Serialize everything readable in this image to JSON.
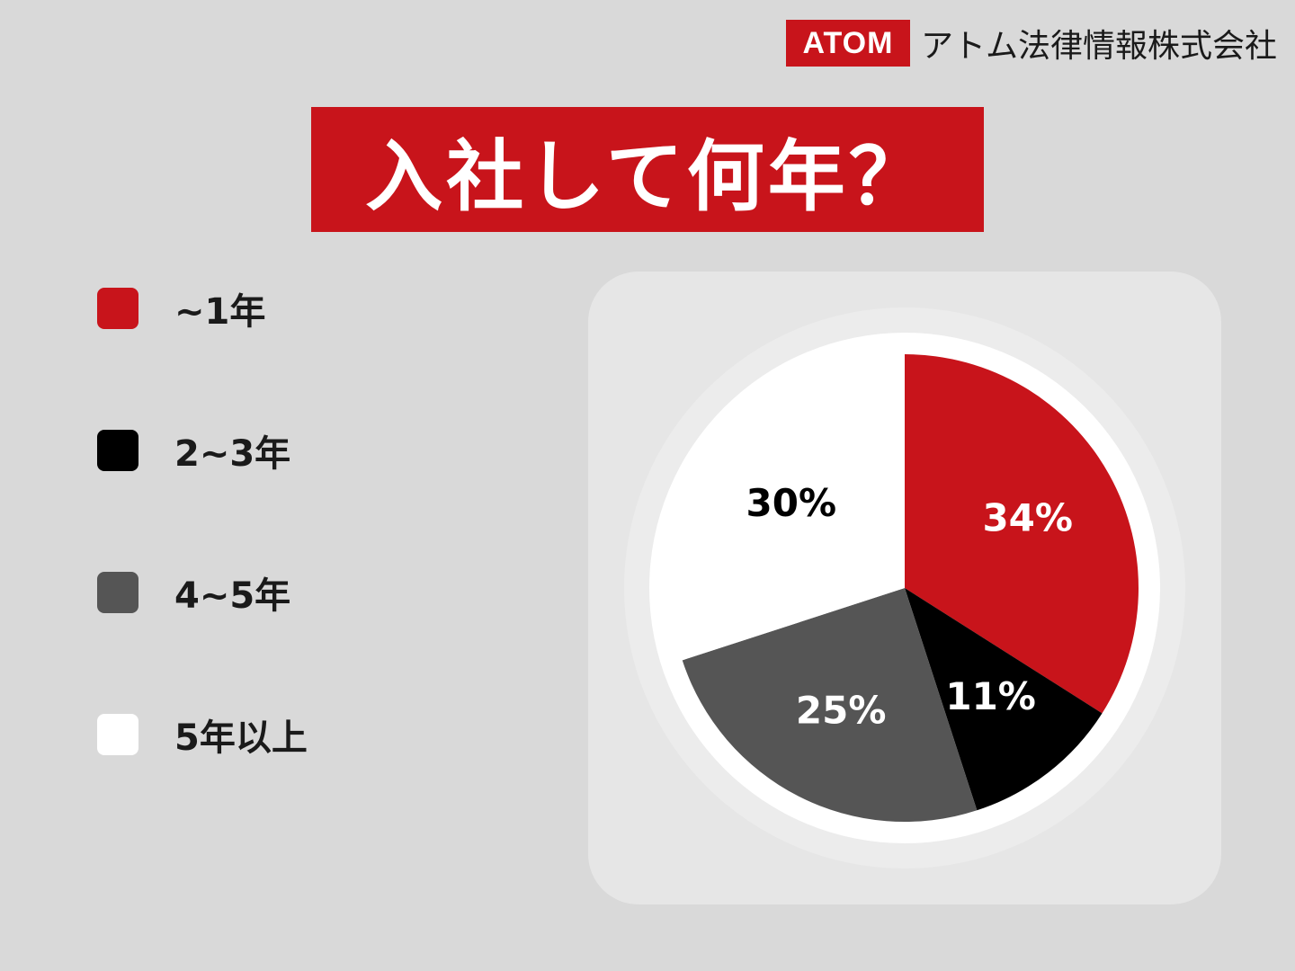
{
  "brand": {
    "logo": "ATOM",
    "company": "アトム法律情報株式会社"
  },
  "title": "入社して何年？",
  "colors": {
    "accent": "#c8141b",
    "black": "#000000",
    "gray": "#555555",
    "white": "#ffffff"
  },
  "chart_data": {
    "type": "pie",
    "title": "入社して何年？",
    "categories": [
      "~1年",
      "2~3年",
      "4~5年",
      "5年以上"
    ],
    "values": [
      34,
      11,
      25,
      30
    ],
    "labels": [
      "34%",
      "11%",
      "25%",
      "30%"
    ],
    "colors": [
      "#c8141b",
      "#000000",
      "#555555",
      "#ffffff"
    ],
    "label_colors": [
      "#ffffff",
      "#ffffff",
      "#ffffff",
      "#000000"
    ],
    "legend_position": "left"
  }
}
